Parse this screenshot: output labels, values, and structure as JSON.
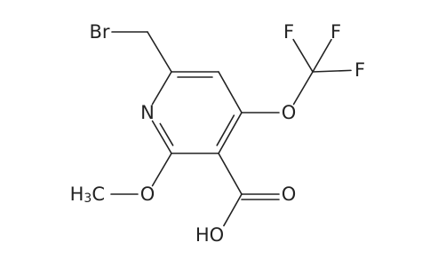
{
  "atoms": {
    "bromine": "Br",
    "nitrogen": "N",
    "ether_oxygen": "O",
    "fluorine_1": "F",
    "fluorine_2": "F",
    "fluorine_3": "F",
    "carbonyl_oxygen": "O",
    "hydroxyl": "HO",
    "methoxy_oxygen": "O",
    "methyl": {
      "h": "H",
      "sub": "3",
      "c": "C"
    }
  }
}
